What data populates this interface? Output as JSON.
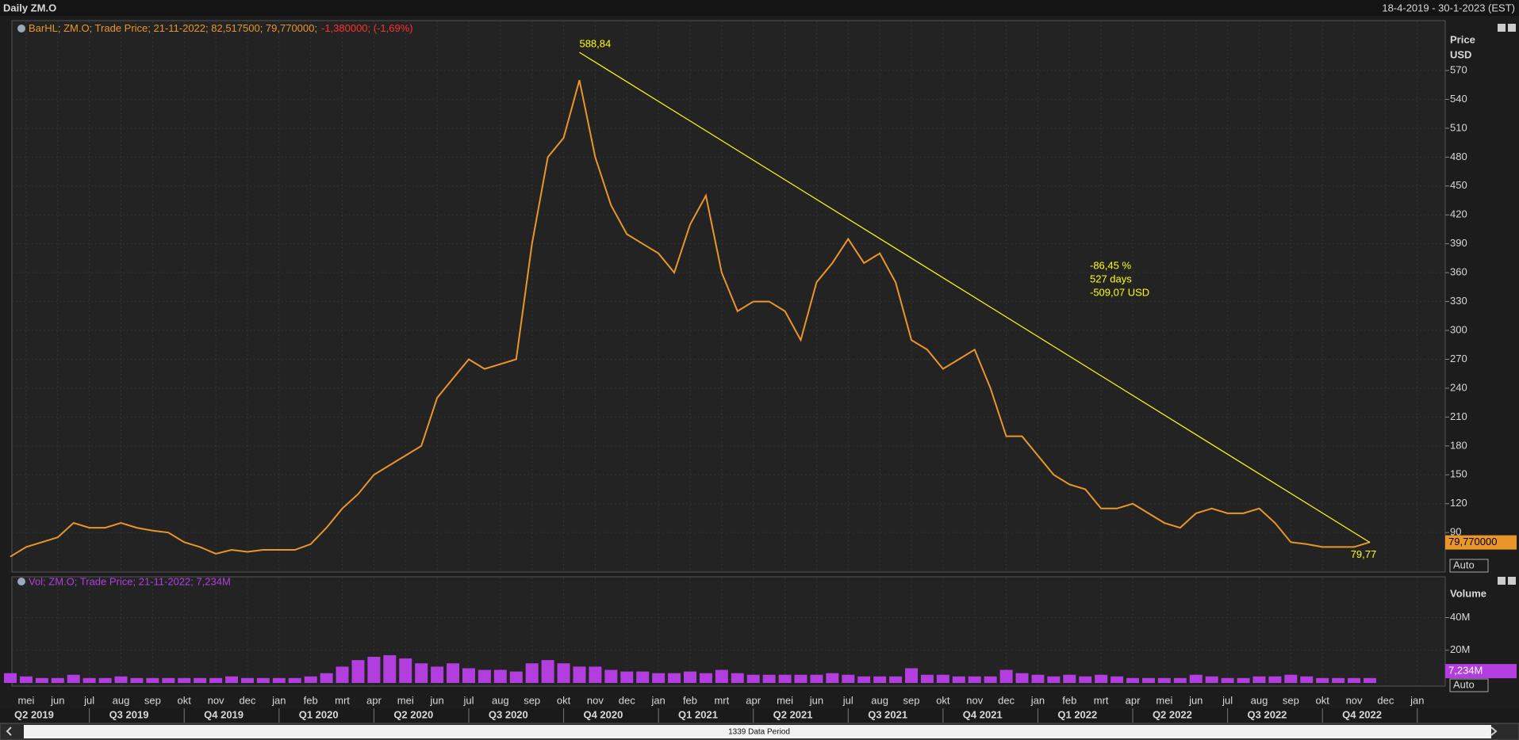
{
  "header": {
    "title": "Daily ZM.O",
    "range": "18-4-2019 - 30-1-2023 (EST)",
    "data_period": "1339 Data Period"
  },
  "chart_data": [
    {
      "type": "line",
      "legend": {
        "text": "BarHL; ZM.O; Trade Price; 21-11-2022; 82,517500; 79,770000;",
        "change": "-1,380000; (-1,69%)"
      },
      "axis_label": "Price",
      "axis_unit": "USD",
      "scale_mode": "Auto",
      "categories": [
        null,
        "mei",
        null,
        "jun",
        null,
        "jul",
        null,
        "aug",
        null,
        "sep",
        null,
        "okt",
        null,
        "nov",
        null,
        "dec",
        null,
        "jan",
        null,
        "feb",
        null,
        "mrt",
        null,
        "apr",
        null,
        "mei",
        null,
        "jun",
        null,
        "jul",
        null,
        "aug",
        null,
        "sep",
        null,
        "okt",
        null,
        "nov",
        null,
        "dec",
        null,
        "jan",
        null,
        "feb",
        null,
        "mrt",
        null,
        "apr",
        null,
        "mei",
        null,
        "jun",
        null,
        "jul",
        null,
        "aug",
        null,
        "sep",
        null,
        "okt",
        null,
        "nov",
        null,
        "dec",
        null,
        "jan",
        null,
        "feb",
        null,
        "mrt",
        null,
        "apr",
        null,
        "mei",
        null,
        "jun",
        null,
        "jul",
        null,
        "aug",
        null,
        "sep",
        null,
        "okt",
        null,
        "nov",
        null,
        "dec",
        null,
        "jan",
        null
      ],
      "quarters": [
        "Q2 2019",
        "Q3 2019",
        "Q4 2019",
        "Q1 2020",
        "Q2 2020",
        "Q3 2020",
        "Q4 2020",
        "Q1 2021",
        "Q2 2021",
        "Q3 2021",
        "Q4 2021",
        "Q1 2022",
        "Q2 2022",
        "Q3 2022",
        "Q4 2022"
      ],
      "series": [
        {
          "name": "ZM.O",
          "color": "#e8962a",
          "values": [
            65,
            75,
            80,
            85,
            100,
            95,
            95,
            100,
            95,
            92,
            90,
            80,
            75,
            68,
            72,
            70,
            72,
            72,
            72,
            78,
            95,
            115,
            130,
            150,
            160,
            170,
            180,
            230,
            250,
            270,
            260,
            265,
            270,
            390,
            480,
            500,
            560,
            480,
            430,
            400,
            390,
            380,
            360,
            410,
            440,
            360,
            320,
            330,
            330,
            320,
            290,
            350,
            370,
            395,
            370,
            380,
            350,
            290,
            280,
            260,
            270,
            280,
            240,
            190,
            190,
            170,
            150,
            140,
            135,
            115,
            115,
            120,
            110,
            100,
            95,
            110,
            115,
            110,
            110,
            115,
            100,
            80,
            78,
            75,
            75,
            75,
            80,
            null,
            null,
            null,
            null
          ]
        }
      ],
      "ylim": [
        49,
        621
      ],
      "yticks": [
        90,
        120,
        150,
        180,
        210,
        240,
        270,
        300,
        330,
        360,
        390,
        420,
        450,
        480,
        510,
        540,
        570
      ],
      "grid": true,
      "last_value": {
        "value": 79.77,
        "label": "79,770000"
      },
      "trendline": {
        "start": 588.84,
        "start_label": "588,84",
        "end": 79.77,
        "end_label": "79,77",
        "color": "#ffff00",
        "stats": [
          "-86,45 %",
          "527 days",
          "-509,07 USD"
        ]
      }
    },
    {
      "type": "bar",
      "legend": {
        "text": "Vol; ZM.O; Trade Price; 21-11-2022; 7,234M"
      },
      "axis_label": "Volume",
      "scale_mode": "Auto",
      "color": "#b23ee0",
      "values": [
        6,
        4,
        3,
        3,
        5,
        3,
        3,
        4,
        3,
        3,
        3,
        3,
        3,
        3,
        4,
        3,
        3,
        3,
        3,
        4,
        6,
        10,
        14,
        16,
        17,
        15,
        12,
        10,
        12,
        9,
        8,
        8,
        7,
        12,
        14,
        12,
        10,
        10,
        8,
        7,
        7,
        6,
        6,
        7,
        6,
        8,
        6,
        5,
        5,
        5,
        5,
        5,
        6,
        5,
        4,
        4,
        4,
        9,
        5,
        5,
        4,
        4,
        4,
        8,
        6,
        5,
        4,
        5,
        4,
        5,
        4,
        3,
        3,
        3,
        3,
        5,
        4,
        3,
        3,
        4,
        4,
        5,
        4,
        3,
        3,
        3,
        3,
        null,
        null,
        null,
        null
      ],
      "ylim": [
        0,
        64
      ],
      "yticks": [
        {
          "value": 20,
          "label": "20M"
        },
        {
          "value": 40,
          "label": "40M"
        }
      ],
      "grid": true,
      "last_value": {
        "value": 7.234,
        "label": "7,234M"
      }
    }
  ]
}
